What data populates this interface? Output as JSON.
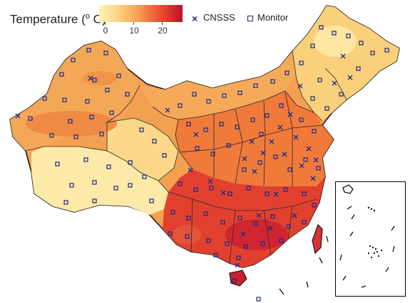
{
  "legend": {
    "title_text": "Temperature (",
    "title_degree": "o",
    "title_unit": " C)",
    "ticks": [
      "0",
      "10",
      "20"
    ],
    "items": [
      {
        "symbol": "x-mark-icon",
        "label": "CNSSS"
      },
      {
        "symbol": "square-marker-icon",
        "label": "Monitor"
      }
    ]
  },
  "colors": {
    "cold": "#fff3b8",
    "warm": "#f7a456",
    "hot": "#b5122a",
    "marker": "#1b2a8a"
  }
}
